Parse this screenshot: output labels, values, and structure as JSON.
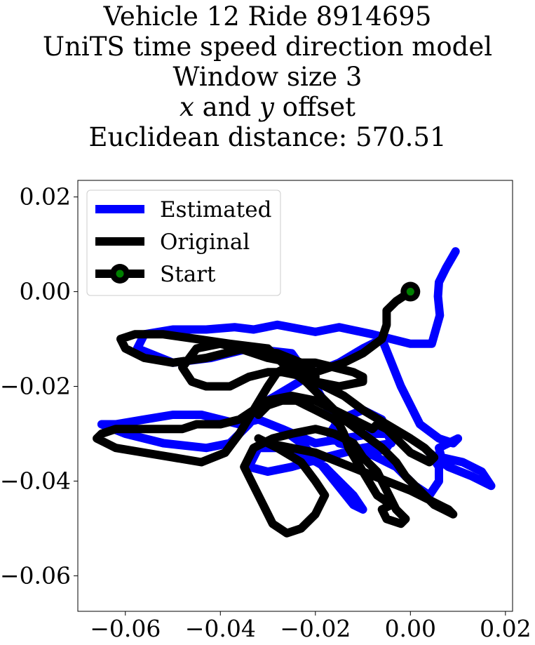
{
  "title_lines": [
    "Vehicle 12 Ride 8914695",
    "UniTS time speed direction model",
    "Window size 3",
    "",
    "Euclidean distance: 570.51"
  ],
  "title_line4": {
    "x_var": "x",
    "and": " and ",
    "y_var": "y",
    "rest": " offset"
  },
  "chart_data": {
    "type": "line",
    "title": "Vehicle 12 Ride 8914695 UniTS time speed direction model Window size 3 x and y offset Euclidean distance: 570.51",
    "xlabel": "",
    "ylabel": "",
    "xlim": [
      -0.07,
      0.0215
    ],
    "ylim": [
      -0.0675,
      0.0235
    ],
    "xticks": [
      -0.06,
      -0.04,
      -0.02,
      0.0,
      0.02
    ],
    "xtick_labels": [
      "−0.06",
      "−0.04",
      "−0.02",
      "0.00",
      "0.02"
    ],
    "yticks": [
      0.02,
      0.0,
      -0.02,
      -0.04,
      -0.06
    ],
    "ytick_labels": [
      "0.02",
      "0.00",
      "−0.02",
      "−0.04",
      "−0.06"
    ],
    "grid": false,
    "legend_position": "top-left",
    "series": [
      {
        "name": "Estimated",
        "color": "#0000ff",
        "x": [
          0.0095,
          0.0075,
          0.006,
          0.0058,
          0.0062,
          0.0045,
          0.0,
          -0.008,
          -0.015,
          -0.02,
          -0.028,
          -0.033,
          -0.037,
          -0.043,
          -0.05,
          -0.056,
          -0.0575,
          -0.05,
          -0.042,
          -0.034,
          -0.025,
          -0.02,
          -0.015,
          -0.01,
          -0.005,
          -0.003,
          -0.008,
          -0.014,
          -0.02,
          -0.027,
          -0.032,
          -0.036,
          -0.04,
          -0.044,
          -0.05,
          -0.056,
          -0.062,
          -0.065,
          -0.06,
          -0.052,
          -0.043,
          -0.038,
          -0.034,
          -0.03,
          -0.025,
          -0.02,
          -0.015,
          -0.01,
          -0.006,
          -0.002,
          0.002,
          0.006,
          0.009,
          0.01,
          0.008,
          0.006,
          0.0065,
          0.011,
          0.015,
          0.017,
          0.013,
          0.008,
          0.004,
          0.006,
          0.006,
          0.004,
          0.001,
          -0.003,
          -0.007,
          -0.011,
          -0.015,
          -0.017,
          -0.015,
          -0.01,
          -0.006,
          -0.004,
          -0.01,
          -0.018,
          -0.025,
          -0.03,
          -0.034,
          -0.032,
          -0.025,
          -0.018,
          -0.012,
          -0.01,
          -0.012,
          -0.016,
          -0.02,
          -0.023,
          -0.027
        ],
        "y": [
          0.0085,
          0.005,
          0.002,
          -0.001,
          -0.005,
          -0.011,
          -0.011,
          -0.009,
          -0.0075,
          -0.0085,
          -0.007,
          -0.008,
          -0.0075,
          -0.008,
          -0.008,
          -0.009,
          -0.012,
          -0.015,
          -0.014,
          -0.012,
          -0.013,
          -0.02,
          -0.029,
          -0.035,
          -0.033,
          -0.03,
          -0.03,
          -0.031,
          -0.032,
          -0.029,
          -0.027,
          -0.028,
          -0.027,
          -0.026,
          -0.026,
          -0.027,
          -0.028,
          -0.028,
          -0.03,
          -0.032,
          -0.033,
          -0.032,
          -0.028,
          -0.023,
          -0.02,
          -0.017,
          -0.015,
          -0.012,
          -0.01,
          -0.02,
          -0.028,
          -0.031,
          -0.032,
          -0.031,
          -0.032,
          -0.033,
          -0.035,
          -0.036,
          -0.038,
          -0.041,
          -0.039,
          -0.037,
          -0.034,
          -0.037,
          -0.04,
          -0.043,
          -0.041,
          -0.037,
          -0.035,
          -0.033,
          -0.032,
          -0.03,
          -0.027,
          -0.025,
          -0.027,
          -0.032,
          -0.033,
          -0.035,
          -0.037,
          -0.038,
          -0.037,
          -0.033,
          -0.033,
          -0.037,
          -0.043,
          -0.046,
          -0.045,
          -0.04,
          -0.035,
          -0.032,
          -0.029
        ]
      },
      {
        "name": "Original",
        "color": "#000000",
        "x": [
          0.0,
          -0.003,
          -0.005,
          -0.005,
          -0.006,
          -0.01,
          -0.014,
          -0.02,
          -0.026,
          -0.03,
          -0.038,
          -0.045,
          -0.052,
          -0.058,
          -0.061,
          -0.06,
          -0.056,
          -0.05,
          -0.043,
          -0.035,
          -0.028,
          -0.023,
          -0.02,
          -0.02,
          -0.015,
          -0.01,
          -0.01,
          -0.012,
          -0.016,
          -0.02,
          -0.025,
          -0.03,
          -0.033,
          -0.036,
          -0.04,
          -0.045,
          -0.048,
          -0.046,
          -0.043,
          -0.038,
          -0.034,
          -0.03,
          -0.027,
          -0.022,
          -0.018,
          -0.014,
          -0.01,
          -0.005,
          0.0,
          0.003,
          0.005,
          0.004,
          0.0,
          -0.003,
          -0.005,
          -0.007,
          -0.008,
          -0.012,
          -0.016,
          -0.02,
          -0.025,
          -0.03,
          -0.033,
          -0.036,
          -0.04,
          -0.045,
          -0.048,
          -0.053,
          -0.058,
          -0.062,
          -0.065,
          -0.066,
          -0.062,
          -0.056,
          -0.05,
          -0.044,
          -0.039,
          -0.036,
          -0.033,
          -0.03,
          -0.028,
          -0.026,
          -0.022,
          -0.018,
          -0.014,
          -0.01,
          -0.006,
          -0.003,
          -0.001,
          0.001,
          0.003,
          0.005,
          0.007,
          0.009,
          0.008,
          0.004,
          0.0,
          -0.005,
          -0.01,
          -0.015,
          -0.02,
          -0.025,
          -0.03,
          -0.032,
          -0.028,
          -0.023,
          -0.02,
          -0.018,
          -0.02,
          -0.023,
          -0.026,
          -0.029,
          -0.031,
          -0.033,
          -0.035,
          -0.033,
          -0.029,
          -0.025,
          -0.02,
          -0.016,
          -0.012,
          -0.01,
          -0.007,
          -0.005,
          -0.003,
          -0.001,
          -0.002,
          -0.005,
          -0.006,
          -0.004,
          -0.007,
          -0.01,
          -0.013,
          -0.014,
          -0.015,
          -0.016,
          -0.018,
          -0.02,
          -0.022,
          -0.024,
          -0.027,
          -0.03,
          -0.032
        ],
        "y": [
          0.0,
          -0.002,
          -0.004,
          -0.007,
          -0.01,
          -0.013,
          -0.015,
          -0.017,
          -0.016,
          -0.012,
          -0.011,
          -0.01,
          -0.009,
          -0.009,
          -0.01,
          -0.012,
          -0.014,
          -0.015,
          -0.014,
          -0.012,
          -0.013,
          -0.015,
          -0.017,
          -0.019,
          -0.02,
          -0.019,
          -0.018,
          -0.017,
          -0.016,
          -0.015,
          -0.015,
          -0.014,
          -0.013,
          -0.012,
          -0.011,
          -0.012,
          -0.016,
          -0.019,
          -0.02,
          -0.02,
          -0.018,
          -0.017,
          -0.017,
          -0.018,
          -0.02,
          -0.022,
          -0.025,
          -0.028,
          -0.031,
          -0.033,
          -0.035,
          -0.036,
          -0.034,
          -0.031,
          -0.029,
          -0.028,
          -0.029,
          -0.027,
          -0.025,
          -0.023,
          -0.022,
          -0.023,
          -0.025,
          -0.027,
          -0.028,
          -0.028,
          -0.029,
          -0.029,
          -0.029,
          -0.029,
          -0.03,
          -0.031,
          -0.033,
          -0.034,
          -0.035,
          -0.036,
          -0.034,
          -0.03,
          -0.025,
          -0.02,
          -0.017,
          -0.016,
          -0.019,
          -0.023,
          -0.027,
          -0.03,
          -0.033,
          -0.036,
          -0.039,
          -0.041,
          -0.043,
          -0.045,
          -0.046,
          -0.047,
          -0.046,
          -0.044,
          -0.042,
          -0.04,
          -0.038,
          -0.036,
          -0.034,
          -0.033,
          -0.032,
          -0.031,
          -0.033,
          -0.036,
          -0.04,
          -0.043,
          -0.047,
          -0.05,
          -0.051,
          -0.049,
          -0.045,
          -0.041,
          -0.037,
          -0.033,
          -0.031,
          -0.03,
          -0.029,
          -0.03,
          -0.032,
          -0.035,
          -0.038,
          -0.042,
          -0.046,
          -0.048,
          -0.049,
          -0.048,
          -0.046,
          -0.045,
          -0.043,
          -0.038,
          -0.033,
          -0.03,
          -0.028,
          -0.027,
          -0.026,
          -0.025,
          -0.024,
          -0.023,
          -0.023,
          -0.024,
          -0.026
        ]
      }
    ],
    "start_point": {
      "name": "Start",
      "x": 0.0,
      "y": 0.0,
      "outer_color": "#000000",
      "inner_color": "#008000"
    },
    "legend": [
      "Estimated",
      "Original",
      "Start"
    ]
  }
}
